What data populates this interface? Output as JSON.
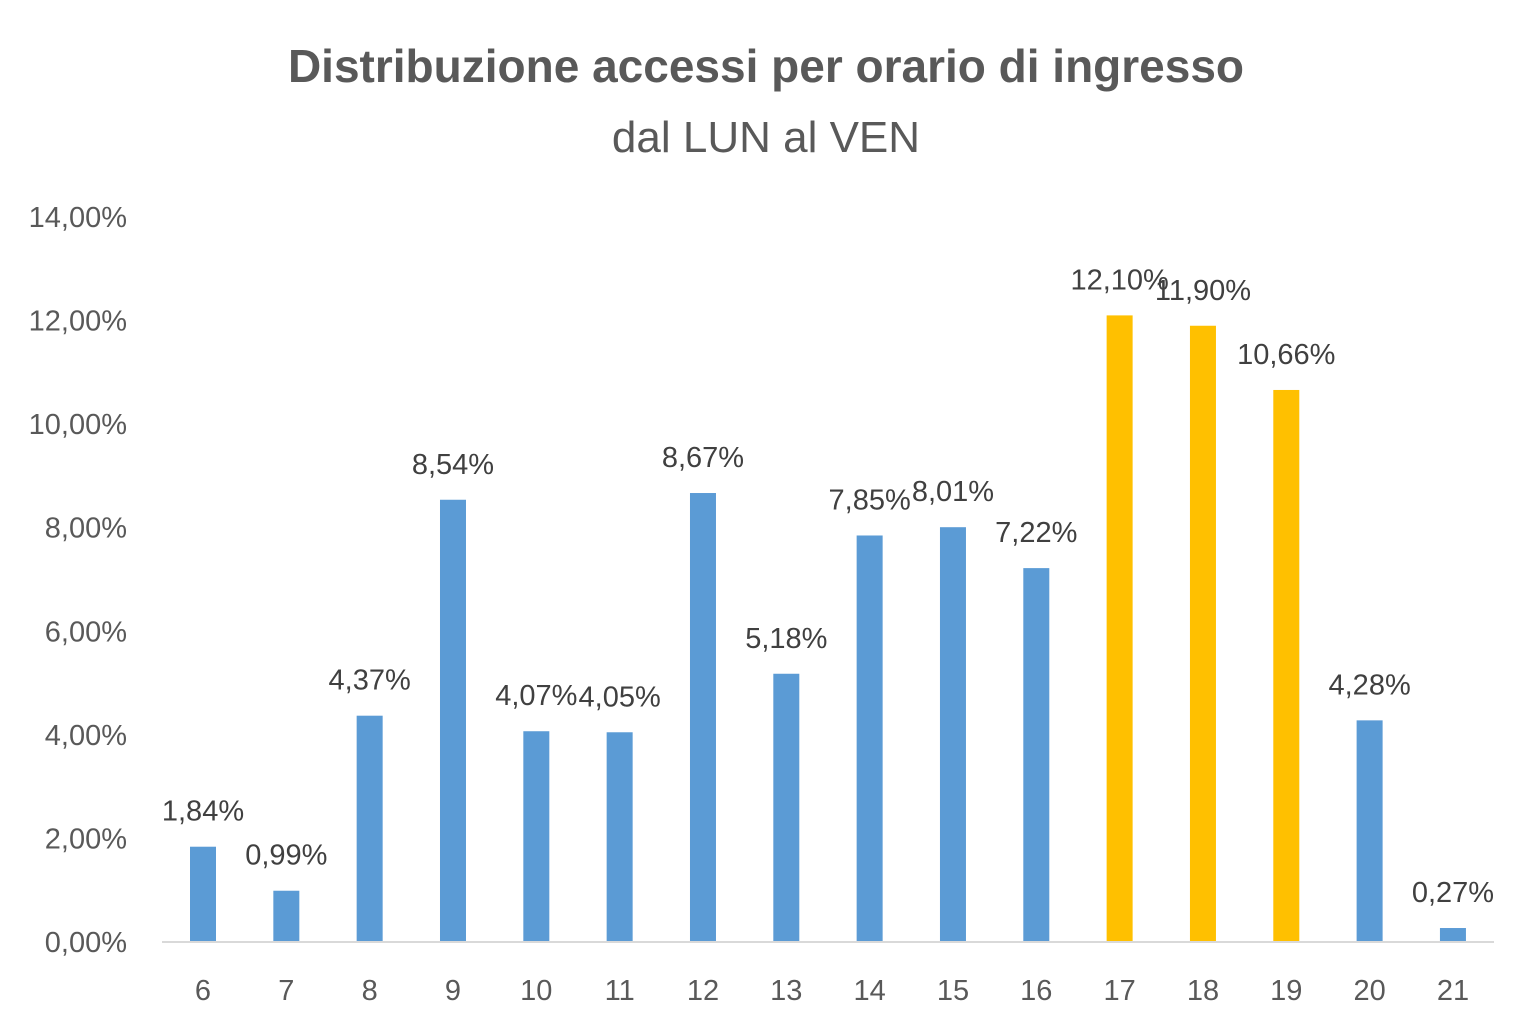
{
  "chart_data": {
    "type": "bar",
    "title": "Distribuzione accessi per orario di ingresso",
    "subtitle": "dal LUN al VEN",
    "xlabel": "",
    "ylabel": "",
    "categories": [
      "6",
      "7",
      "8",
      "9",
      "10",
      "11",
      "12",
      "13",
      "14",
      "15",
      "16",
      "17",
      "18",
      "19",
      "20",
      "21"
    ],
    "values": [
      1.84,
      0.99,
      4.37,
      8.54,
      4.07,
      4.05,
      8.67,
      5.18,
      7.85,
      8.01,
      7.22,
      12.1,
      11.9,
      10.66,
      4.28,
      0.27
    ],
    "data_labels": [
      "1,84%",
      "0,99%",
      "4,37%",
      "8,54%",
      "4,07%",
      "4,05%",
      "8,67%",
      "5,18%",
      "7,85%",
      "8,01%",
      "7,22%",
      "12,10%",
      "11,90%",
      "10,66%",
      "4,28%",
      "0,27%"
    ],
    "highlighted": [
      "17",
      "18",
      "19"
    ],
    "ylim": [
      0,
      14
    ],
    "yticks": [
      "0,00%",
      "2,00%",
      "4,00%",
      "6,00%",
      "8,00%",
      "10,00%",
      "12,00%",
      "14,00%"
    ],
    "grid": false,
    "colors": {
      "default": "#5B9BD5",
      "highlight": "#FFC000",
      "axis": "#D9D9D9"
    }
  }
}
